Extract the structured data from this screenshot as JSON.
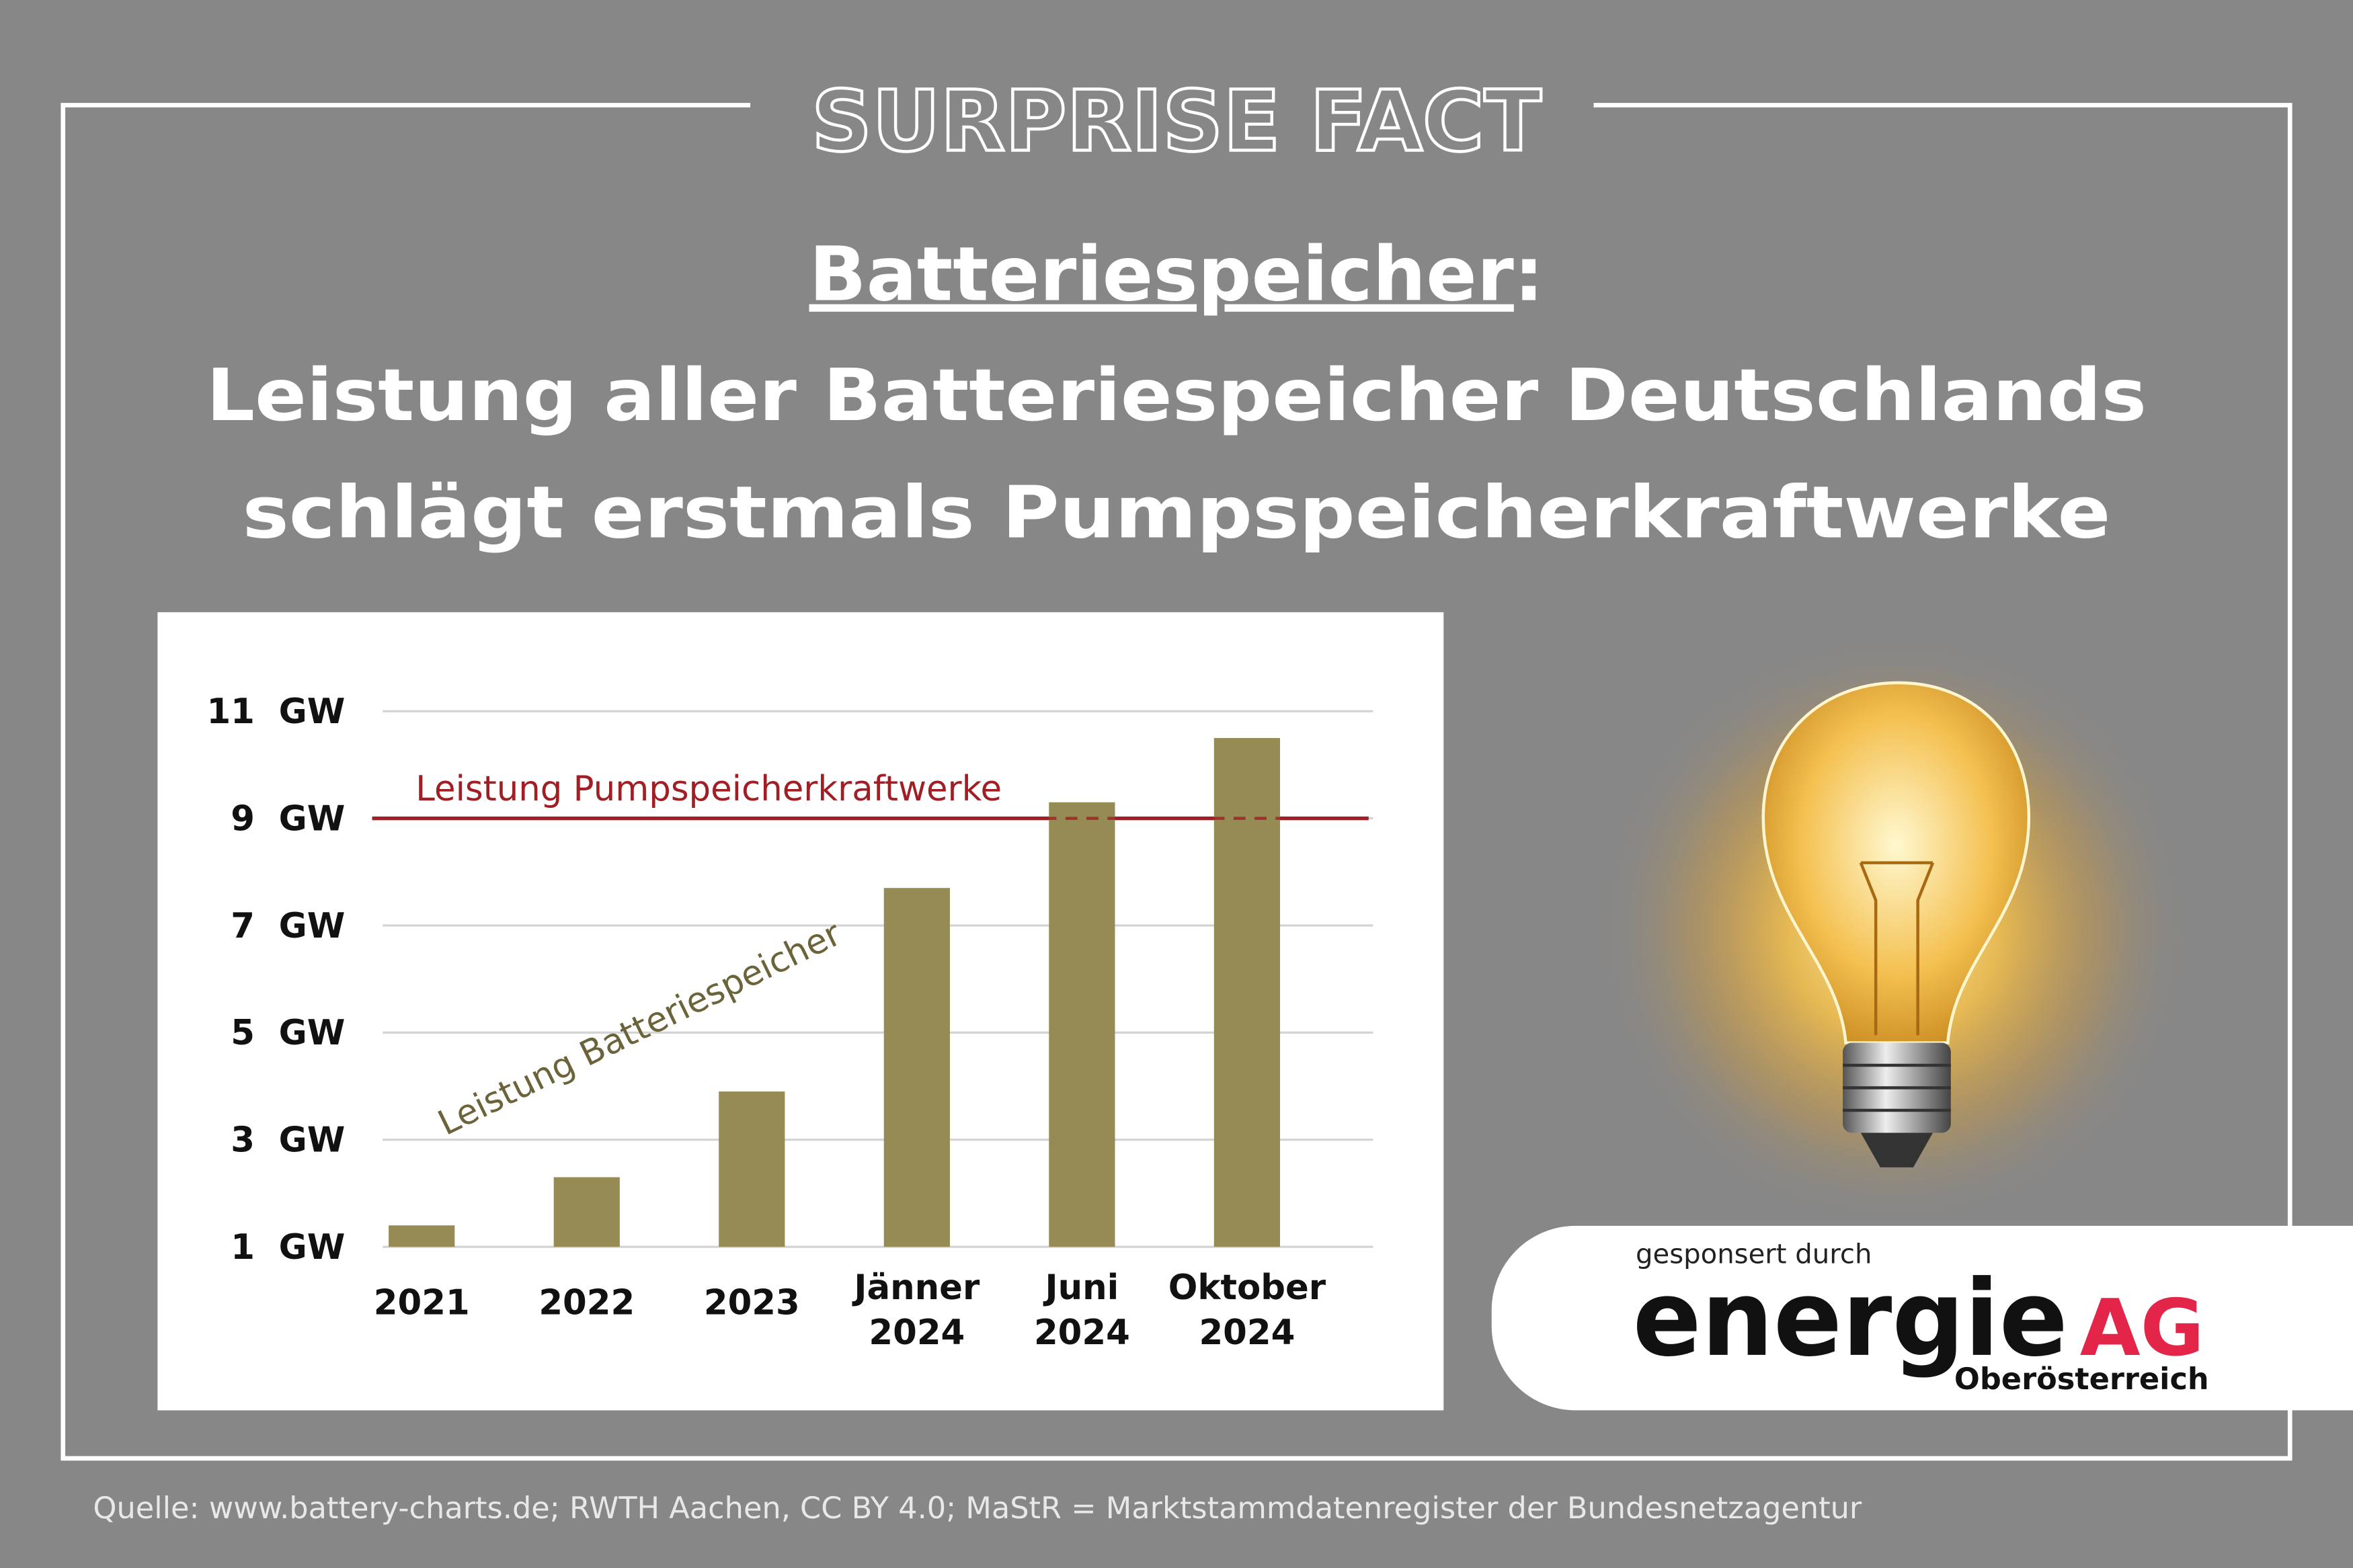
{
  "header": {
    "kicker": "SURPRISE FACT",
    "headline": "Batteriespeicher",
    "headline_suffix": ":",
    "subtitle_lines": [
      "Leistung aller Batteriespeicher Deutschlands",
      "schlägt erstmals Pumpspeicherkraftwerke"
    ]
  },
  "chart_data": {
    "type": "bar",
    "categories": [
      "2021",
      "2022",
      "2023",
      "Jänner 2024",
      "Juni 2024",
      "Oktober 2024"
    ],
    "values": [
      1.4,
      2.3,
      3.9,
      7.7,
      9.3,
      10.5
    ],
    "color": "#978b55",
    "ylim": [
      1,
      11
    ],
    "yticks": [
      {
        "value": 1,
        "label": "1  GW"
      },
      {
        "value": 3,
        "label": "3  GW"
      },
      {
        "value": 5,
        "label": "5  GW"
      },
      {
        "value": 7,
        "label": "7  GW"
      },
      {
        "value": 9,
        "label": "9  GW"
      },
      {
        "value": 11,
        "label": "11  GW"
      }
    ],
    "grid": true,
    "reference_line": {
      "value": 9,
      "label": "Leistung Pumpspeicherkraftwerke",
      "color": "#a01e24"
    },
    "annotation": {
      "text": "Leistung Batteriespeicher",
      "color": "#6b6339"
    }
  },
  "sponsor": {
    "prefix": "gesponsert durch",
    "brand": "energie",
    "brand_suffix": "AG",
    "region": "Oberösterreich"
  },
  "footer": {
    "source": "Quelle: www.battery-charts.de; RWTH Aachen, CC BY 4.0; MaStR = Marktstammdatenregister der Bundesnetzagentur"
  }
}
